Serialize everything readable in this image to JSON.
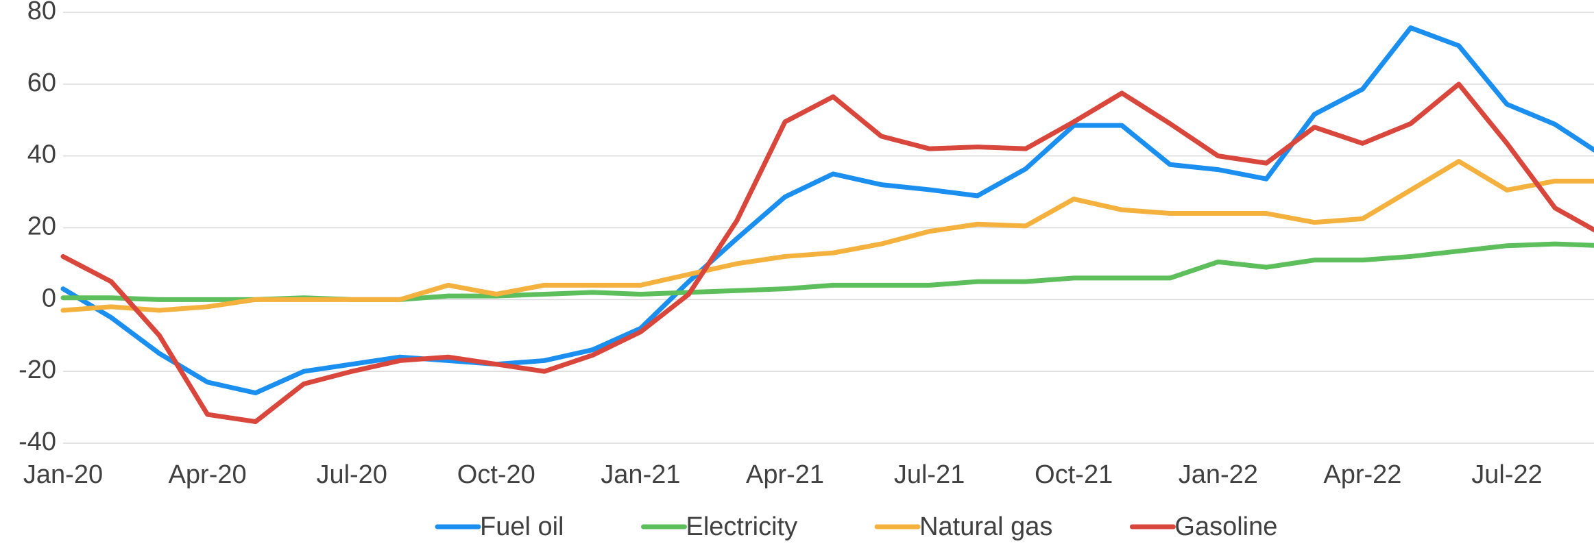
{
  "chart_data": {
    "type": "line",
    "categories": [
      "Jan-20",
      null,
      null,
      "Apr-20",
      null,
      null,
      "Jul-20",
      null,
      null,
      "Oct-20",
      null,
      null,
      "Jan-21",
      null,
      null,
      "Apr-21",
      null,
      null,
      "Jul-21",
      null,
      null,
      "Oct-21",
      null,
      null,
      "Jan-22",
      null,
      null,
      "Apr-22",
      null,
      null,
      "Jul-22",
      null,
      null
    ],
    "series": [
      {
        "name": "Fuel oil",
        "color": "#1a8ff0",
        "values": [
          3,
          -5,
          -15,
          -23,
          -26,
          -20,
          -18,
          -16,
          -17,
          -18,
          -17,
          -14,
          -8,
          5,
          17,
          28.6,
          35,
          32,
          30.6,
          28.9,
          36.4,
          48.5,
          48.5,
          37.6,
          36.2,
          33.6,
          51.6,
          58.6,
          75.7,
          70.7,
          54.4,
          48.8,
          40
        ]
      },
      {
        "name": "Electricity",
        "color": "#5cbf5c",
        "values": [
          0.5,
          0.5,
          0,
          0,
          0,
          0.5,
          0,
          0,
          1,
          1,
          1.5,
          2,
          1.5,
          2,
          2.5,
          3,
          4,
          4,
          4,
          5,
          5,
          6,
          6,
          6,
          10.5,
          9,
          11,
          11,
          12,
          13.5,
          15,
          15.5,
          15
        ]
      },
      {
        "name": "Natural gas",
        "color": "#f4b13e",
        "values": [
          -3,
          -2,
          -3,
          -2,
          0,
          0,
          0,
          0,
          4,
          1.5,
          4,
          4,
          4,
          7,
          10,
          12,
          13,
          15.5,
          19,
          21,
          20.5,
          28,
          25,
          24,
          24,
          24,
          21.5,
          22.5,
          30.5,
          38.5,
          30.5,
          33,
          33
        ]
      },
      {
        "name": "Gasoline",
        "color": "#d9463b",
        "values": [
          12,
          5,
          -10,
          -32,
          -34,
          -23.5,
          -20,
          -17,
          -16,
          -18,
          -20,
          -15.5,
          -9,
          1.5,
          22,
          49.5,
          56.5,
          45.5,
          42,
          42.5,
          42,
          49.5,
          57.5,
          49,
          40,
          38,
          48,
          43.5,
          49,
          60,
          43.5,
          25.5,
          18
        ]
      }
    ],
    "ylim": [
      -40,
      80
    ],
    "yticks": [
      -40,
      -20,
      0,
      20,
      40,
      60,
      80
    ],
    "grid": true,
    "legend": "bottom"
  }
}
